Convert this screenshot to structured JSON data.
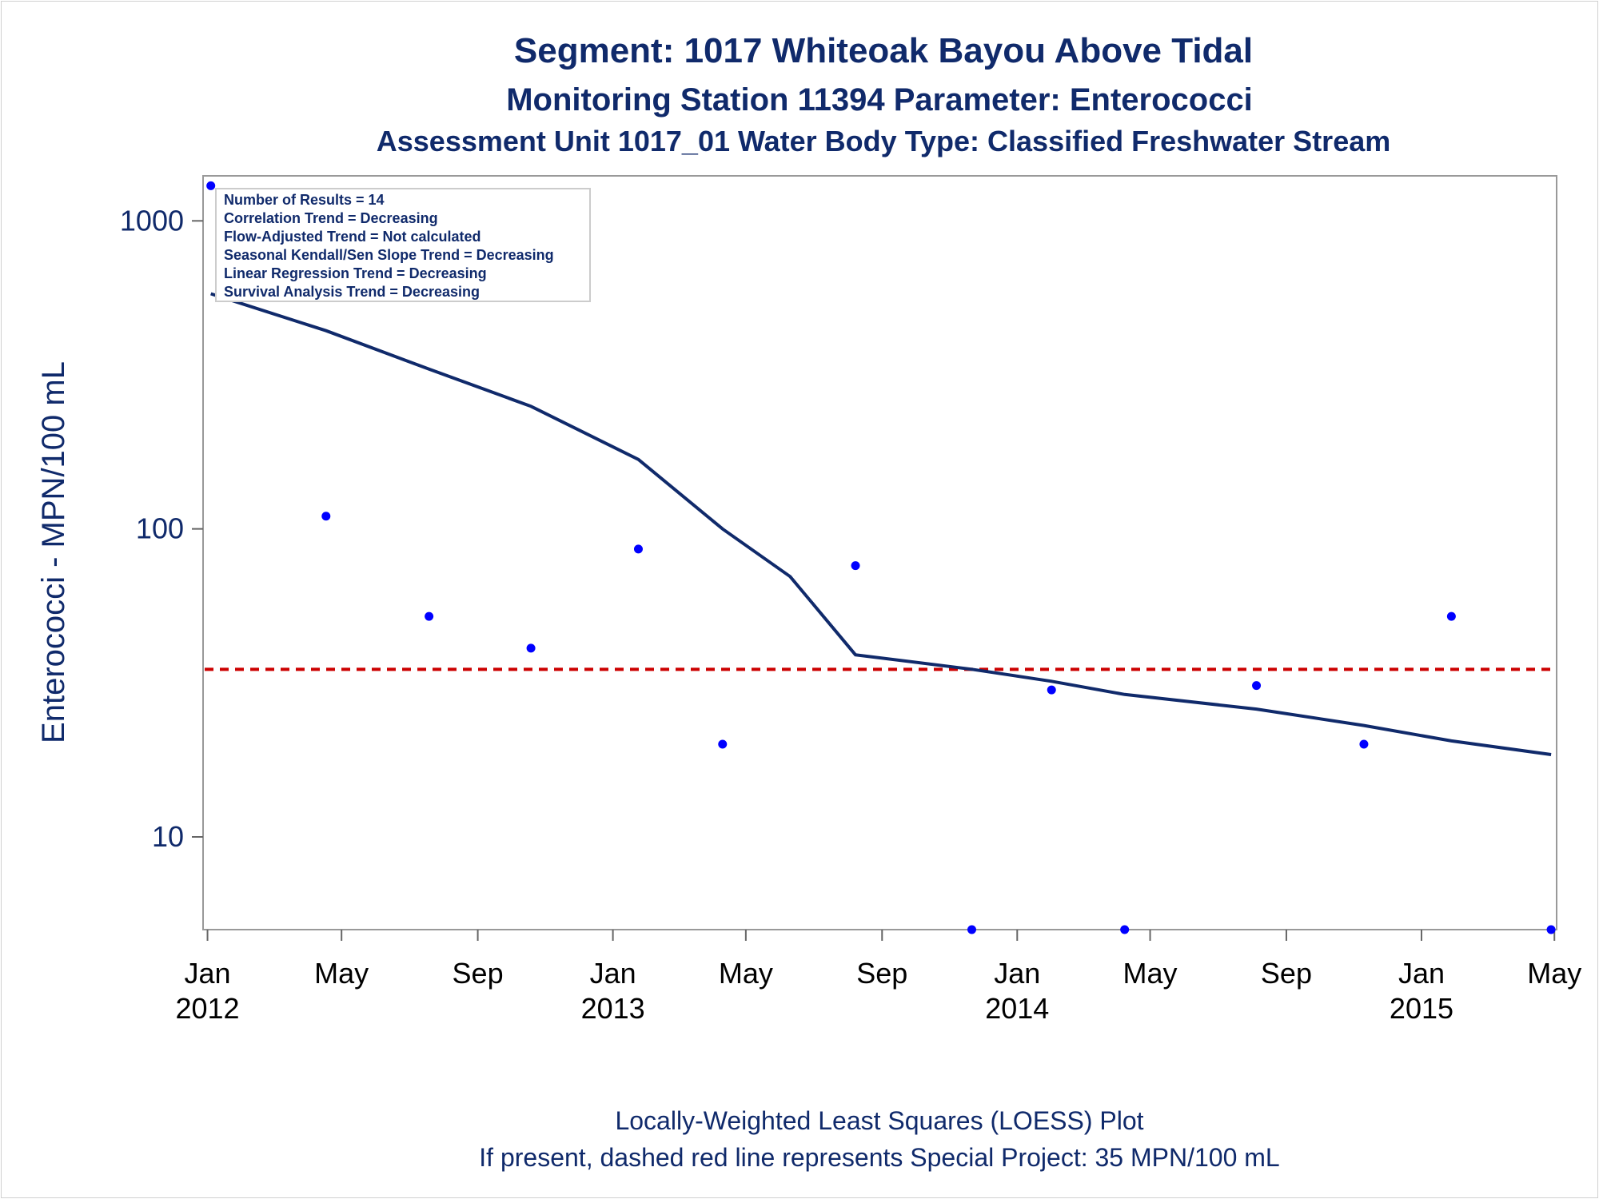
{
  "titles": {
    "line1": "Segment: 1017  Whiteoak Bayou Above Tidal",
    "line2": "Monitoring Station 11394 Parameter: Enterococci",
    "line3": "Assessment Unit 1017_01   Water Body Type: Classified Freshwater Stream"
  },
  "footnotes": {
    "line1": "Locally-Weighted Least Squares (LOESS) Plot",
    "line2": "If present, dashed red line represents Special Project: 35 MPN/100 mL"
  },
  "legend": {
    "lines": [
      "Number of Results = 14",
      "Correlation Trend = Decreasing",
      "Flow-Adjusted Trend = Not calculated",
      "Seasonal Kendall/Sen Slope Trend = Decreasing",
      "Linear Regression Trend = Decreasing",
      "Survival Analysis Trend = Decreasing"
    ]
  },
  "colors": {
    "points": "#0000ff",
    "loess": "#102a6b",
    "reference": "#cc0000",
    "text": "#102a6b"
  },
  "chart_data": {
    "type": "scatter",
    "ylabel": "Enterococci - MPN/100 mL",
    "yscale": "log",
    "ylim": [
      5,
      1400
    ],
    "yticks": [
      {
        "value": 10,
        "label": "10"
      },
      {
        "value": 100,
        "label": "100"
      },
      {
        "value": 1000,
        "label": "1000"
      }
    ],
    "xlim": [
      "2011-12-28",
      "2015-05-03"
    ],
    "xticks": [
      {
        "date": "2012-01-01",
        "label": "Jan",
        "year": "2012"
      },
      {
        "date": "2012-05-01",
        "label": "May",
        "year": ""
      },
      {
        "date": "2012-09-01",
        "label": "Sep",
        "year": ""
      },
      {
        "date": "2013-01-01",
        "label": "Jan",
        "year": "2013"
      },
      {
        "date": "2013-05-01",
        "label": "May",
        "year": ""
      },
      {
        "date": "2013-09-01",
        "label": "Sep",
        "year": ""
      },
      {
        "date": "2014-01-01",
        "label": "Jan",
        "year": "2014"
      },
      {
        "date": "2014-05-01",
        "label": "May",
        "year": ""
      },
      {
        "date": "2014-09-01",
        "label": "Sep",
        "year": ""
      },
      {
        "date": "2015-01-01",
        "label": "Jan",
        "year": "2015"
      },
      {
        "date": "2015-05-01",
        "label": "May",
        "year": ""
      }
    ],
    "points": [
      {
        "date": "2012-01-04",
        "value": 1300
      },
      {
        "date": "2012-04-17",
        "value": 110
      },
      {
        "date": "2012-07-19",
        "value": 52
      },
      {
        "date": "2012-10-19",
        "value": 41
      },
      {
        "date": "2013-01-24",
        "value": 86
      },
      {
        "date": "2013-04-10",
        "value": 20
      },
      {
        "date": "2013-08-08",
        "value": 76
      },
      {
        "date": "2013-11-21",
        "value": 5
      },
      {
        "date": "2014-02-01",
        "value": 30
      },
      {
        "date": "2014-04-08",
        "value": 5
      },
      {
        "date": "2014-08-05",
        "value": 31
      },
      {
        "date": "2014-11-10",
        "value": 20
      },
      {
        "date": "2015-01-28",
        "value": 52
      },
      {
        "date": "2015-04-28",
        "value": 5
      }
    ],
    "loess": [
      {
        "date": "2012-01-04",
        "value": 580
      },
      {
        "date": "2012-04-17",
        "value": 440
      },
      {
        "date": "2012-07-19",
        "value": 330
      },
      {
        "date": "2012-10-19",
        "value": 250
      },
      {
        "date": "2013-01-24",
        "value": 168
      },
      {
        "date": "2013-04-10",
        "value": 100
      },
      {
        "date": "2013-06-10",
        "value": 70
      },
      {
        "date": "2013-08-08",
        "value": 39
      },
      {
        "date": "2013-11-21",
        "value": 35
      },
      {
        "date": "2014-02-01",
        "value": 32
      },
      {
        "date": "2014-04-08",
        "value": 29
      },
      {
        "date": "2014-08-05",
        "value": 26
      },
      {
        "date": "2014-11-10",
        "value": 23
      },
      {
        "date": "2015-01-28",
        "value": 20.5
      },
      {
        "date": "2015-04-28",
        "value": 18.5
      }
    ],
    "reference_line": {
      "value": 35
    }
  }
}
